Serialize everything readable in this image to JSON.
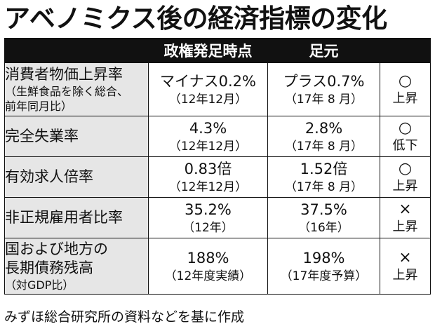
{
  "title": "アベノミクス後の経済指標の変化",
  "table": {
    "headers": [
      "",
      "政権発足時点",
      "足元",
      ""
    ],
    "rows": [
      {
        "label_lines": [
          "消費者物価上昇率",
          "（生鮮食品を除く総合、",
          "前年同月比）"
        ],
        "then_value": "マイナス0.2%",
        "then_date": "（12年12月）",
        "now_value": "プラス0.7%",
        "now_date": "（17年 8 月）",
        "mark": "○",
        "trend": "上昇"
      },
      {
        "label_lines": [
          "完全失業率"
        ],
        "then_value": "4.3%",
        "then_date": "（12年12月）",
        "now_value": "2.8%",
        "now_date": "（17年 8 月）",
        "mark": "○",
        "trend": "低下"
      },
      {
        "label_lines": [
          "有効求人倍率"
        ],
        "then_value": "0.83倍",
        "then_date": "（12年12月）",
        "now_value": "1.52倍",
        "now_date": "（17年 8 月）",
        "mark": "○",
        "trend": "上昇"
      },
      {
        "label_lines": [
          "非正規雇用者比率"
        ],
        "then_value": "35.2%",
        "then_date": "（12年）",
        "now_value": "37.5%",
        "now_date": "（16年）",
        "mark": "×",
        "trend": "上昇"
      },
      {
        "label_lines": [
          "国および地方の",
          "長期債務残高",
          "（対GDP比）"
        ],
        "then_value": "188%",
        "then_date": "（12年度実績）",
        "now_value": "198%",
        "now_date": "（17年度予算）",
        "mark": "×",
        "trend": "上昇"
      }
    ]
  },
  "footer": "みずほ総合研究所の資料などを基に作成"
}
